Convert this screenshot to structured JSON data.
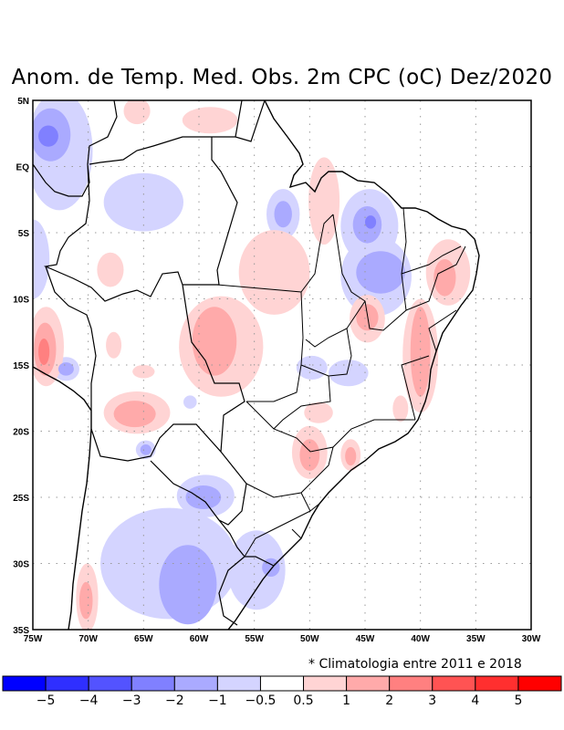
{
  "title": "Anom. de Temp. Med. Obs. 2m CPC (oC) Dez/2020",
  "note": "* Climatologia entre 2011 e 2018",
  "map": {
    "lon_range": [
      -75,
      -30
    ],
    "lat_range": [
      -35,
      5
    ],
    "lon_ticks": [
      {
        "v": -75,
        "l": "75W"
      },
      {
        "v": -70,
        "l": "70W"
      },
      {
        "v": -65,
        "l": "65W"
      },
      {
        "v": -60,
        "l": "60W"
      },
      {
        "v": -55,
        "l": "55W"
      },
      {
        "v": -50,
        "l": "50W"
      },
      {
        "v": -45,
        "l": "45W"
      },
      {
        "v": -40,
        "l": "40W"
      },
      {
        "v": -35,
        "l": "35W"
      },
      {
        "v": -30,
        "l": "30W"
      }
    ],
    "lat_ticks": [
      {
        "v": 5,
        "l": "5N"
      },
      {
        "v": 0,
        "l": "EQ"
      },
      {
        "v": -5,
        "l": "5S"
      },
      {
        "v": -10,
        "l": "10S"
      },
      {
        "v": -15,
        "l": "15S"
      },
      {
        "v": -20,
        "l": "20S"
      },
      {
        "v": -25,
        "l": "25S"
      },
      {
        "v": -30,
        "l": "30S"
      },
      {
        "v": -35,
        "l": "35S"
      }
    ],
    "anomaly_regions": [
      {
        "lon": -72.6,
        "lat": 1.2,
        "rlon": 3.0,
        "rlat": 4.5,
        "level": -1
      },
      {
        "lon": -73.4,
        "lat": 2.4,
        "rlon": 1.8,
        "rlat": 2.0,
        "level": -2
      },
      {
        "lon": -73.6,
        "lat": 2.3,
        "rlon": 0.9,
        "rlat": 0.8,
        "level": -3
      },
      {
        "lon": -65,
        "lat": -2.7,
        "rlon": 3.6,
        "rlat": 2.2,
        "level": -1
      },
      {
        "lon": -52.4,
        "lat": -3.6,
        "rlon": 1.5,
        "rlat": 1.9,
        "level": -1
      },
      {
        "lon": -52.4,
        "lat": -3.6,
        "rlon": 0.8,
        "rlat": 1.0,
        "level": -2
      },
      {
        "lon": -44.6,
        "lat": -4.5,
        "rlon": 2.6,
        "rlat": 2.8,
        "level": -1
      },
      {
        "lon": -44.8,
        "lat": -4.4,
        "rlon": 1.3,
        "rlat": 1.4,
        "level": -2
      },
      {
        "lon": -44.5,
        "lat": -4.2,
        "rlon": 0.5,
        "rlat": 0.5,
        "level": -3
      },
      {
        "lon": -44.0,
        "lat": -8.3,
        "rlon": 3.2,
        "rlat": 3.0,
        "level": -1
      },
      {
        "lon": -43.6,
        "lat": -8.0,
        "rlon": 2.2,
        "rlat": 1.6,
        "level": -2
      },
      {
        "lon": -62.7,
        "lat": -30.0,
        "rlon": 6.2,
        "rlat": 4.2,
        "level": -1
      },
      {
        "lon": -61.0,
        "lat": -31.6,
        "rlon": 2.6,
        "rlat": 3.0,
        "level": -2
      },
      {
        "lon": -59.4,
        "lat": -24.9,
        "rlon": 2.6,
        "rlat": 1.6,
        "level": -1
      },
      {
        "lon": -59.6,
        "lat": -25.0,
        "rlon": 1.6,
        "rlat": 0.9,
        "level": -2
      },
      {
        "lon": -54.8,
        "lat": -30.5,
        "rlon": 2.6,
        "rlat": 3.0,
        "level": -1
      },
      {
        "lon": -53.5,
        "lat": -30.3,
        "rlon": 0.8,
        "rlat": 0.7,
        "level": -2
      },
      {
        "lon": -72.0,
        "lat": -15.3,
        "rlon": 1.2,
        "rlat": 0.9,
        "level": -1
      },
      {
        "lon": -72.0,
        "lat": -15.3,
        "rlon": 0.7,
        "rlat": 0.5,
        "level": -2
      },
      {
        "lon": -64.8,
        "lat": -21.4,
        "rlon": 0.9,
        "rlat": 0.7,
        "level": -1
      },
      {
        "lon": -64.8,
        "lat": -21.4,
        "rlon": 0.5,
        "rlat": 0.4,
        "level": -2
      },
      {
        "lon": -49.8,
        "lat": -15.2,
        "rlon": 1.4,
        "rlat": 0.9,
        "level": -1
      },
      {
        "lon": -46.5,
        "lat": -15.6,
        "rlon": 1.8,
        "rlat": 1.0,
        "level": -1
      },
      {
        "lon": -75.0,
        "lat": -7.0,
        "rlon": 1.5,
        "rlat": 3.0,
        "level": -1
      },
      {
        "lon": -60.8,
        "lat": -17.8,
        "rlon": 0.6,
        "rlat": 0.5,
        "level": -1
      },
      {
        "lon": -53.2,
        "lat": -8.0,
        "rlon": 3.2,
        "rlat": 3.2,
        "level": 1
      },
      {
        "lon": -58.0,
        "lat": -13.6,
        "rlon": 3.8,
        "rlat": 3.8,
        "level": 1
      },
      {
        "lon": -58.6,
        "lat": -13.2,
        "rlon": 2.0,
        "rlat": 2.6,
        "level": 2
      },
      {
        "lon": -65.6,
        "lat": -18.6,
        "rlon": 3.0,
        "rlat": 1.6,
        "level": 1
      },
      {
        "lon": -65.8,
        "lat": -18.7,
        "rlon": 1.9,
        "rlat": 1.0,
        "level": 2
      },
      {
        "lon": -73.8,
        "lat": -13.6,
        "rlon": 1.6,
        "rlat": 3.0,
        "level": 1
      },
      {
        "lon": -73.9,
        "lat": -13.8,
        "rlon": 1.0,
        "rlat": 2.0,
        "level": 2
      },
      {
        "lon": -74.0,
        "lat": -14.0,
        "rlon": 0.5,
        "rlat": 1.0,
        "level": 3
      },
      {
        "lon": -40.0,
        "lat": -14.3,
        "rlon": 1.6,
        "rlat": 4.3,
        "level": 1
      },
      {
        "lon": -40.0,
        "lat": -14.0,
        "rlon": 0.9,
        "rlat": 3.4,
        "level": 2
      },
      {
        "lon": -44.8,
        "lat": -11.5,
        "rlon": 1.6,
        "rlat": 1.8,
        "level": 1
      },
      {
        "lon": -44.8,
        "lat": -11.4,
        "rlon": 1.0,
        "rlat": 1.0,
        "level": 2
      },
      {
        "lon": -37.5,
        "lat": -8.0,
        "rlon": 2.0,
        "rlat": 2.5,
        "level": 1
      },
      {
        "lon": -37.8,
        "lat": -8.4,
        "rlon": 1.0,
        "rlat": 1.4,
        "level": 2
      },
      {
        "lon": -50.0,
        "lat": -21.6,
        "rlon": 1.6,
        "rlat": 2.0,
        "level": 1
      },
      {
        "lon": -50.0,
        "lat": -21.8,
        "rlon": 0.9,
        "rlat": 1.2,
        "level": 2
      },
      {
        "lon": -46.3,
        "lat": -21.8,
        "rlon": 0.9,
        "rlat": 1.2,
        "level": 1
      },
      {
        "lon": -46.3,
        "lat": -21.9,
        "rlon": 0.5,
        "rlat": 0.7,
        "level": 2
      },
      {
        "lon": -70.1,
        "lat": -32.6,
        "rlon": 1.0,
        "rlat": 2.6,
        "level": 1
      },
      {
        "lon": -70.2,
        "lat": -32.8,
        "rlon": 0.6,
        "rlat": 1.4,
        "level": 2
      },
      {
        "lon": -48.7,
        "lat": -2.6,
        "rlon": 1.4,
        "rlat": 3.3,
        "level": 1
      },
      {
        "lon": -65.6,
        "lat": 4.2,
        "rlon": 1.2,
        "rlat": 1.0,
        "level": 1
      },
      {
        "lon": -59.0,
        "lat": 3.5,
        "rlon": 2.5,
        "rlat": 1.0,
        "level": 1
      },
      {
        "lon": -41.8,
        "lat": -18.3,
        "rlon": 0.7,
        "rlat": 1.0,
        "level": 1
      },
      {
        "lon": -49.2,
        "lat": -18.6,
        "rlon": 1.3,
        "rlat": 0.8,
        "level": 1
      },
      {
        "lon": -67.7,
        "lat": -13.5,
        "rlon": 0.7,
        "rlat": 1.0,
        "level": 1
      },
      {
        "lon": -68.0,
        "lat": -7.8,
        "rlon": 1.2,
        "rlat": 1.3,
        "level": 1
      },
      {
        "lon": -65.0,
        "lat": -15.5,
        "rlon": 1.0,
        "rlat": 0.5,
        "level": 1
      }
    ]
  },
  "colorbar": {
    "colors": [
      "#0000ff",
      "#2f2fff",
      "#5353ff",
      "#8080ff",
      "#aaaaff",
      "#d4d4ff",
      "#ffffff",
      "#ffd4d4",
      "#ffaaaa",
      "#ff8080",
      "#ff5353",
      "#ff2f2f",
      "#ff0000"
    ],
    "levels": [
      -6,
      -5,
      -4,
      -3,
      -2,
      -1,
      -0.5,
      0.5,
      1,
      2,
      3,
      4,
      5
    ],
    "labels": [
      "−5",
      "−4",
      "−3",
      "−2",
      "−1",
      "−0.5",
      "0.5",
      "1",
      "2",
      "3",
      "4",
      "5"
    ]
  }
}
